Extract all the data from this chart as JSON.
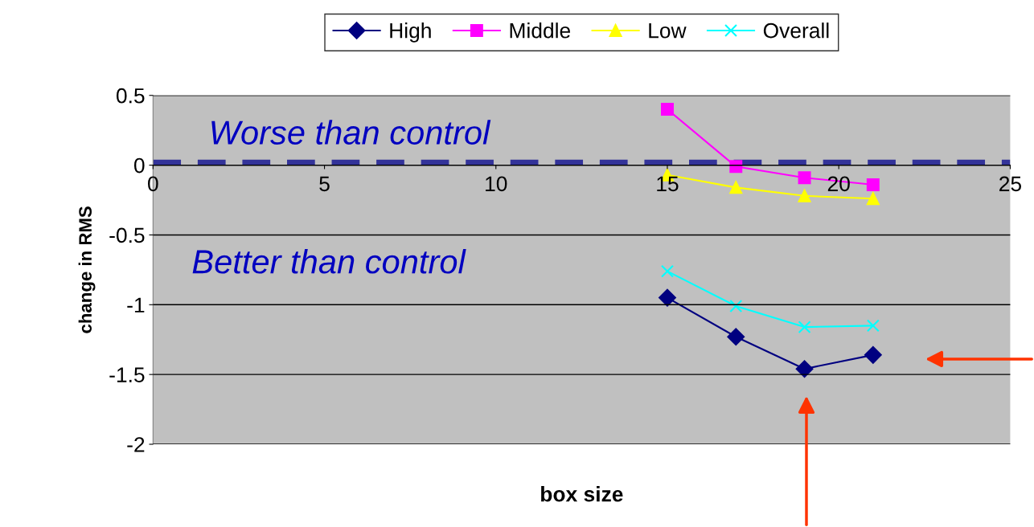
{
  "chart_data": {
    "type": "line",
    "xlabel": "box size",
    "ylabel": "change in RMS",
    "x": [
      15,
      17,
      19,
      21
    ],
    "series": [
      {
        "name": "High",
        "color": "#000080",
        "marker": "diamond",
        "values": [
          -0.95,
          -1.23,
          -1.46,
          -1.36
        ]
      },
      {
        "name": "Middle",
        "color": "#ff00ff",
        "marker": "square",
        "values": [
          0.4,
          -0.01,
          -0.09,
          -0.14
        ]
      },
      {
        "name": "Low",
        "color": "#ffff00",
        "marker": "triangle",
        "values": [
          -0.07,
          -0.16,
          -0.22,
          -0.24
        ]
      },
      {
        "name": "Overall",
        "color": "#00ffff",
        "marker": "cross",
        "values": [
          -0.76,
          -1.01,
          -1.16,
          -1.15
        ]
      }
    ],
    "xlim": [
      0,
      25
    ],
    "xticks": [
      0,
      5,
      10,
      15,
      20,
      25
    ],
    "ylim": [
      -2,
      0.5
    ],
    "yticks": [
      -2,
      -1.5,
      -1,
      -0.5,
      0,
      0.5
    ],
    "ref_lines": [
      {
        "axis": "y",
        "value": 0.02,
        "color": "#333399",
        "line_style": "dashed"
      }
    ],
    "annotations": [
      "Worse than control",
      "Better than control"
    ],
    "grid": "y",
    "legend": "top"
  }
}
